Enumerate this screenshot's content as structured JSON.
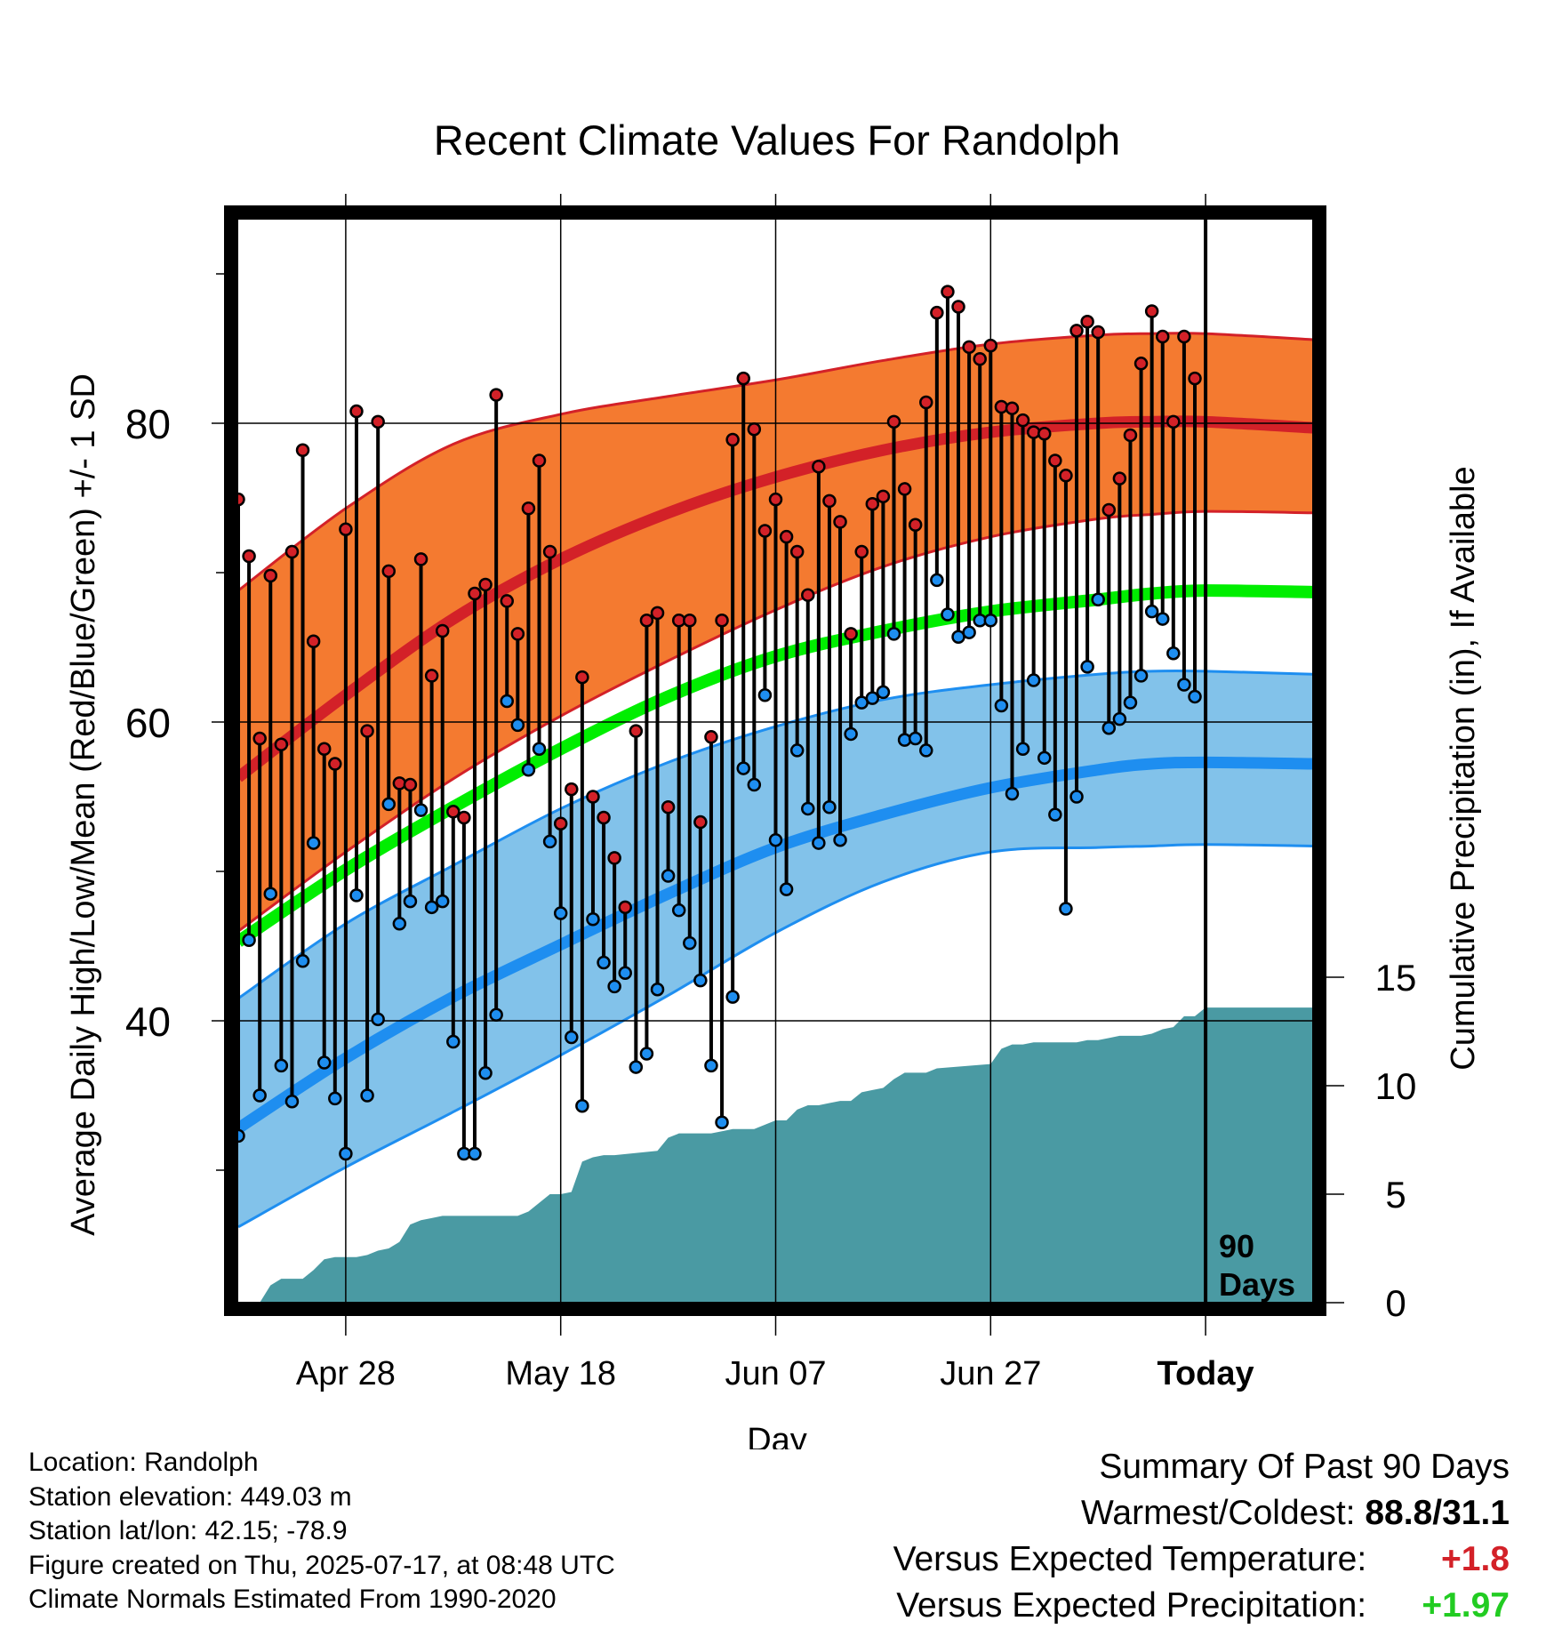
{
  "chart_data": {
    "type": "line",
    "title": "Recent Climate Values For Randolph",
    "xlabel": "Day",
    "ylabel_left": "Average Daily High/Low/Mean (Red/Blue/Green) +/- 1 SD",
    "ylabel_right": "Cumulative Precipitation (in), If Available",
    "x_ticks": [
      {
        "label": "Apr 28",
        "day": 10
      },
      {
        "label": "May 18",
        "day": 30
      },
      {
        "label": "Jun 07",
        "day": 50
      },
      {
        "label": "Jun 27",
        "day": 70
      },
      {
        "label": "Today",
        "day": 90
      }
    ],
    "y_ticks_left": [
      40,
      60,
      80
    ],
    "y_ticks_right": [
      0,
      5,
      10,
      15
    ],
    "ylim_left": [
      22,
      94
    ],
    "ylim_right": [
      0,
      50
    ],
    "xlim": [
      0,
      100
    ],
    "today_marker": {
      "day": 90,
      "label_line1": "90",
      "label_line2": "Days"
    },
    "grid": true,
    "normals": {
      "days": [
        0,
        10,
        20,
        30,
        40,
        50,
        60,
        70,
        80,
        85,
        90,
        100
      ],
      "high_mean": [
        56.3,
        61.8,
        66.9,
        70.9,
        74.0,
        76.4,
        78.2,
        79.4,
        80.0,
        80.1,
        80.1,
        79.7
      ],
      "high_plus_sd": [
        68.8,
        74.3,
        78.6,
        80.6,
        81.8,
        82.9,
        84.2,
        85.3,
        85.9,
        86.0,
        86.0,
        85.6
      ],
      "high_minus_sd": [
        46.0,
        51.3,
        56.2,
        60.4,
        64.1,
        67.5,
        70.4,
        72.4,
        73.6,
        73.9,
        74.1,
        74.0
      ],
      "mean": [
        45.3,
        50.1,
        54.3,
        58.2,
        61.7,
        64.4,
        66.1,
        67.4,
        68.2,
        68.6,
        68.8,
        68.7
      ],
      "low_mean": [
        32.8,
        37.5,
        41.6,
        45.1,
        48.5,
        51.6,
        53.8,
        55.6,
        56.8,
        57.2,
        57.3,
        57.2
      ],
      "low_plus_sd": [
        41.5,
        46.5,
        50.4,
        54.2,
        57.3,
        59.7,
        61.5,
        62.5,
        63.2,
        63.4,
        63.4,
        63.2
      ],
      "low_minus_sd": [
        26.2,
        30.2,
        33.9,
        37.7,
        41.7,
        45.9,
        49.3,
        51.3,
        51.6,
        51.7,
        51.8,
        51.7
      ]
    },
    "series": [
      {
        "name": "High",
        "values": [
          74.9,
          71.1,
          58.9,
          69.8,
          58.5,
          71.4,
          78.2,
          65.4,
          58.2,
          57.2,
          72.9,
          80.8,
          59.4,
          80.1,
          70.1,
          55.9,
          55.8,
          70.9,
          63.1,
          66.1,
          54.0,
          53.6,
          68.6,
          69.2,
          81.9,
          68.1,
          65.9,
          74.3,
          77.5,
          71.4,
          53.2,
          55.5,
          63.0,
          55.0,
          53.6,
          50.9,
          47.6,
          59.4,
          66.8,
          67.3,
          54.3,
          66.8,
          66.8,
          53.3,
          59.0,
          66.8,
          78.9,
          83.0,
          79.6,
          72.8,
          74.9,
          72.4,
          71.4,
          68.5,
          77.1,
          74.8,
          73.4,
          65.9,
          71.4,
          74.6,
          75.1,
          80.1,
          75.6,
          73.2,
          81.4,
          87.4,
          88.8,
          87.8,
          85.1,
          84.3,
          85.2,
          81.1,
          81.0,
          80.2,
          79.4,
          79.3,
          77.5,
          76.5,
          86.2,
          86.8,
          86.1,
          74.2,
          76.3,
          79.2,
          84.0,
          87.5,
          85.8,
          80.1,
          85.8,
          83.0
        ]
      },
      {
        "name": "Low",
        "values": [
          32.3,
          45.4,
          35.0,
          48.5,
          37.0,
          34.6,
          44.0,
          51.9,
          37.2,
          34.8,
          31.1,
          48.4,
          35.0,
          40.1,
          54.5,
          46.5,
          48.0,
          54.1,
          47.6,
          48.0,
          38.6,
          31.1,
          31.1,
          36.5,
          40.4,
          61.4,
          59.8,
          56.8,
          58.2,
          52.0,
          47.2,
          38.9,
          34.3,
          46.8,
          43.9,
          42.3,
          43.2,
          36.9,
          37.8,
          42.1,
          49.7,
          47.4,
          45.2,
          42.7,
          37.0,
          33.2,
          41.6,
          56.9,
          55.8,
          61.8,
          52.1,
          48.8,
          58.1,
          54.2,
          51.9,
          54.3,
          52.1,
          59.2,
          61.3,
          61.6,
          62.0,
          65.9,
          58.8,
          58.9,
          58.1,
          69.5,
          67.2,
          65.7,
          66.0,
          66.8,
          66.8,
          61.1,
          55.2,
          58.2,
          62.8,
          57.6,
          53.8,
          47.5,
          55.0,
          63.7,
          68.2,
          59.6,
          60.2,
          61.3,
          63.1,
          67.4,
          66.9,
          64.6,
          62.5,
          61.7
        ]
      },
      {
        "name": "Cumulative Precipitation",
        "days": [
          0,
          2,
          3,
          4,
          5,
          6,
          7,
          8,
          9,
          10,
          11,
          12,
          13,
          14,
          15,
          16,
          17,
          18,
          19,
          20,
          26,
          27,
          28,
          29,
          30,
          31,
          32,
          33,
          34,
          35,
          39,
          40,
          41,
          42,
          43,
          44,
          45,
          46,
          47,
          48,
          50,
          51,
          52,
          53,
          54,
          55,
          56,
          57,
          58,
          59,
          60,
          61,
          62,
          63,
          64,
          65,
          70,
          71,
          72,
          73,
          74,
          75,
          76,
          77,
          78,
          79,
          80,
          81,
          82,
          83,
          84,
          85,
          86,
          87,
          88,
          89,
          90,
          100
        ],
        "values": [
          0,
          0,
          0.8,
          1.1,
          1.1,
          1.1,
          1.5,
          2.0,
          2.1,
          2.1,
          2.1,
          2.2,
          2.4,
          2.5,
          2.8,
          3.6,
          3.8,
          3.9,
          4.0,
          4.0,
          4.0,
          4.2,
          4.6,
          5.0,
          5.0,
          5.1,
          6.5,
          6.7,
          6.8,
          6.8,
          7.0,
          7.6,
          7.8,
          7.8,
          7.8,
          7.8,
          7.9,
          8.0,
          8.0,
          8.0,
          8.4,
          8.4,
          8.9,
          9.1,
          9.1,
          9.2,
          9.3,
          9.3,
          9.7,
          9.8,
          9.9,
          10.3,
          10.6,
          10.6,
          10.6,
          10.8,
          11.0,
          11.7,
          11.9,
          11.9,
          12.0,
          12.0,
          12.0,
          12.0,
          12.0,
          12.1,
          12.1,
          12.2,
          12.3,
          12.3,
          12.3,
          12.4,
          12.6,
          12.7,
          13.2,
          13.2,
          13.6,
          13.6
        ]
      }
    ],
    "colors": {
      "high_band": "#f47a30",
      "high_line": "#d32128",
      "mean_line": "#00ee00",
      "low_band": "#82c2ea",
      "low_line": "#1e8ef0",
      "precip": "#4a9aa3",
      "high_dot": "#d32128",
      "low_dot": "#1e8ef0"
    }
  },
  "meta": {
    "location": "Location: Randolph",
    "elevation": "Station elevation: 449.03 m",
    "latlon": "Station lat/lon: 42.15; -78.9",
    "created": "Figure created on Thu, 2025-07-17, at 08:48 UTC",
    "normals": "Climate Normals Estimated From 1990-2020"
  },
  "summary": {
    "title": "Summary Of Past 90 Days",
    "warm_cold_label": "Warmest/Coldest:",
    "warm_cold_value": "88.8/31.1",
    "temp_label": "Versus Expected Temperature:",
    "temp_value": "+1.8",
    "precip_label": "Versus Expected Precipitation:",
    "precip_value": "+1.97",
    "temp_color": "#d32128",
    "precip_color": "#22cc22"
  }
}
